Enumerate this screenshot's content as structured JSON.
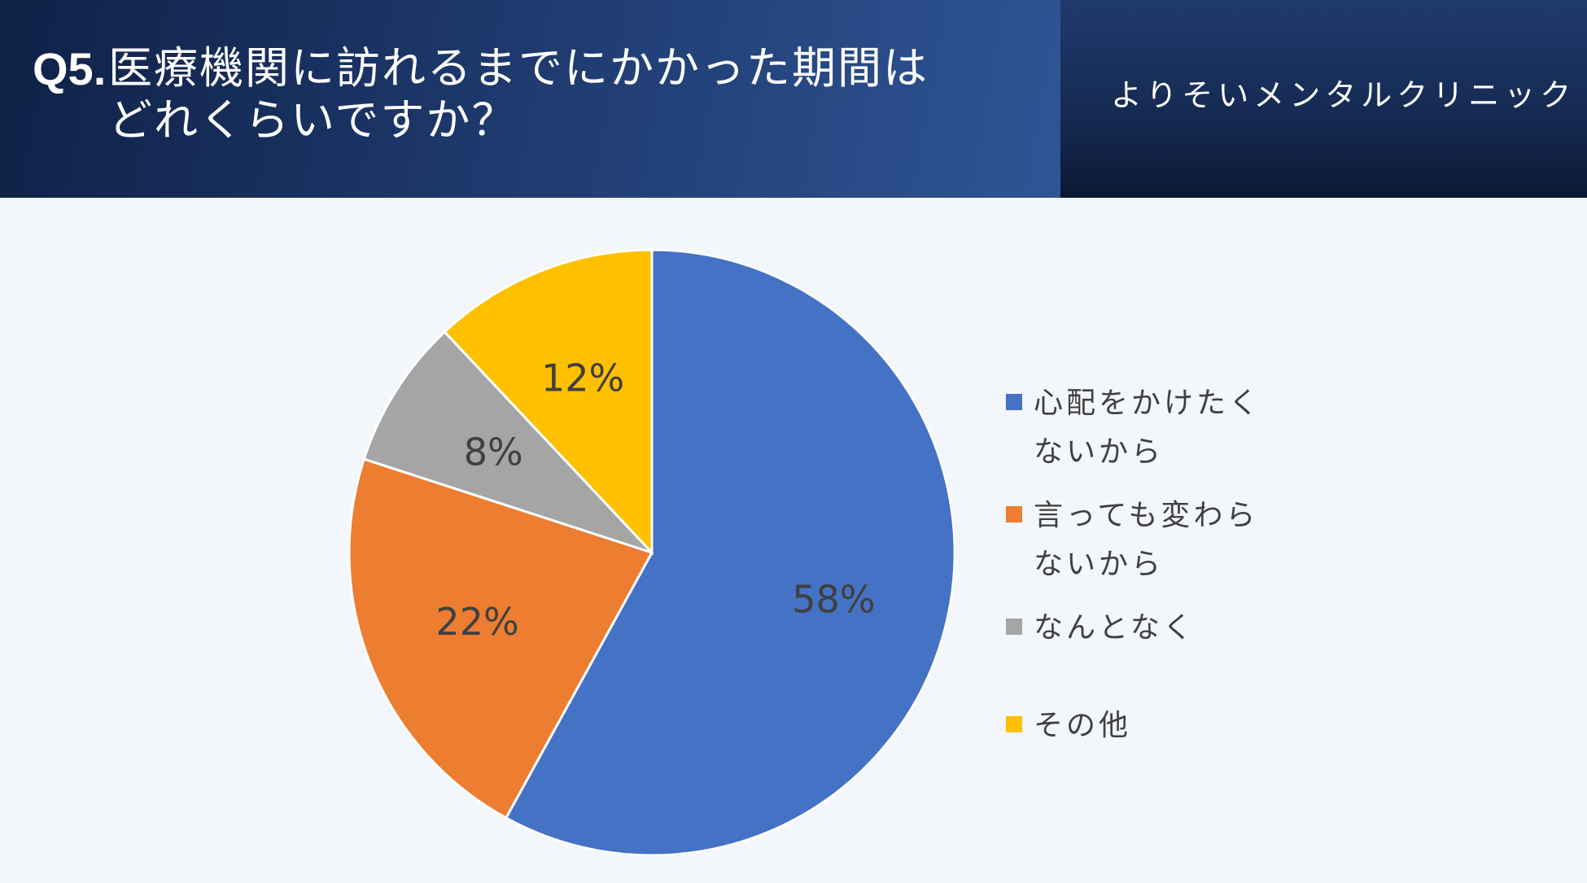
{
  "header": {
    "question_number": "Q5.",
    "question_line1": "医療機関に訪れるまでにかかった期間は",
    "question_line2": "どれくらいですか？",
    "clinic_name": "よりそいメンタルクリニック"
  },
  "chart_data": {
    "type": "pie",
    "categories": [
      "心配をかけたくないから",
      "言っても変わらないから",
      "なんとなく",
      "その他"
    ],
    "values": [
      58,
      22,
      8,
      12
    ],
    "labels": [
      "58%",
      "22%",
      "8%",
      "12%"
    ],
    "colors": [
      "#4472c4",
      "#ed7d31",
      "#a5a5a5",
      "#ffc000"
    ],
    "legend_position": "right"
  }
}
